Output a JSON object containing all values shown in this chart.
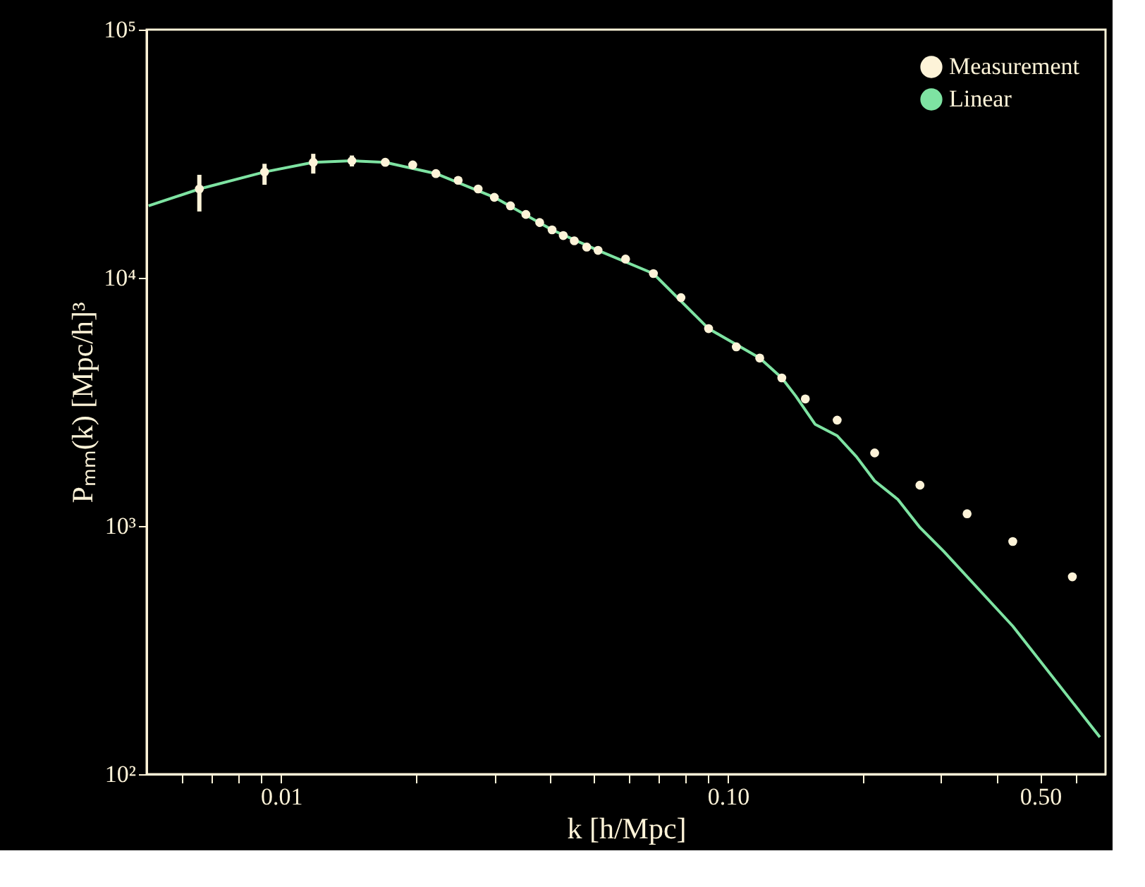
{
  "chart_data": {
    "type": "scatter",
    "xlabel": "k [h/Mpc]",
    "ylabel": "Pₘₘ(k) [Mpc/h]³",
    "log": "xy",
    "legend": "top right",
    "grid": false,
    "xlim": [
      0.005,
      0.7
    ],
    "ylim": [
      100,
      100000
    ],
    "xticks": [
      {
        "value": 0.006,
        "label": null
      },
      {
        "value": 0.007,
        "label": null
      },
      {
        "value": 0.008,
        "label": null
      },
      {
        "value": 0.009,
        "label": null
      },
      {
        "value": 0.01,
        "label": "0.01"
      },
      {
        "value": 0.02,
        "label": null
      },
      {
        "value": 0.03,
        "label": null
      },
      {
        "value": 0.04,
        "label": null
      },
      {
        "value": 0.05,
        "label": null
      },
      {
        "value": 0.06,
        "label": null
      },
      {
        "value": 0.07,
        "label": null
      },
      {
        "value": 0.08,
        "label": null
      },
      {
        "value": 0.09,
        "label": null
      },
      {
        "value": 0.1,
        "label": "0.10"
      },
      {
        "value": 0.2,
        "label": null
      },
      {
        "value": 0.3,
        "label": null
      },
      {
        "value": 0.4,
        "label": null
      },
      {
        "value": 0.5,
        "label": "0.50"
      },
      {
        "value": 0.6,
        "label": null
      }
    ],
    "yticks": [
      {
        "value": 100,
        "label": "10²"
      },
      {
        "value": 1000,
        "label": "10³"
      },
      {
        "value": 10000,
        "label": "10⁴"
      },
      {
        "value": 100000,
        "label": "10⁵"
      }
    ],
    "series": [
      {
        "name": "Measurement",
        "color": "#fdf3d8",
        "marker": "circle",
        "x": [
          0.00656,
          0.00918,
          0.0118,
          0.0144,
          0.0171,
          0.0197,
          0.0222,
          0.0249,
          0.0276,
          0.03,
          0.0326,
          0.0353,
          0.0379,
          0.0404,
          0.0428,
          0.0453,
          0.0483,
          0.0512,
          0.059,
          0.0681,
          0.0785,
          0.0905,
          0.1044,
          0.1178,
          0.132,
          0.149,
          0.1756,
          0.213,
          0.269,
          0.343,
          0.434,
          0.59
        ],
        "values": [
          22800,
          26700,
          29200,
          29600,
          29200,
          28500,
          26300,
          24700,
          22800,
          21100,
          19500,
          18000,
          16700,
          15600,
          14800,
          14100,
          13300,
          12900,
          11900,
          10400,
          8320,
          6240,
          5270,
          4750,
          3950,
          3250,
          2670,
          1970,
          1460,
          1120,
          866,
          624
        ],
        "errors": [
          [
            18500,
            26000
          ],
          [
            23700,
            28800
          ],
          [
            26300,
            31600
          ],
          [
            28100,
            31100
          ],
          [
            28200,
            30200
          ],
          null,
          null,
          null,
          null,
          null,
          null,
          null,
          null,
          null,
          null,
          null,
          null,
          null,
          null,
          null,
          null,
          null,
          null,
          null,
          null,
          null,
          null,
          null,
          null,
          null,
          null,
          null
        ]
      },
      {
        "name": "Linear",
        "type": "line",
        "color": "#7ee3a2",
        "line_style": "solid",
        "x": [
          0.00505,
          0.00656,
          0.00918,
          0.0118,
          0.0144,
          0.0171,
          0.0222,
          0.03,
          0.0404,
          0.0512,
          0.0681,
          0.0905,
          0.1178,
          0.132,
          0.1418,
          0.1567,
          0.1756,
          0.194,
          0.213,
          0.24,
          0.269,
          0.304,
          0.434,
          0.68
        ],
        "values": [
          19500,
          22800,
          26700,
          29200,
          29600,
          29200,
          26300,
          21100,
          15600,
          12900,
          10400,
          6240,
          4750,
          3950,
          3340,
          2570,
          2310,
          1900,
          1520,
          1280,
          986,
          791,
          395,
          141
        ]
      }
    ]
  }
}
